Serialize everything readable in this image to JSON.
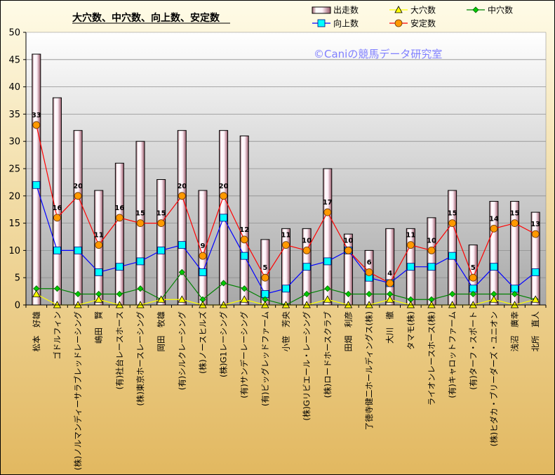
{
  "chart_data": {
    "type": "bar",
    "title": "大穴数、中穴数、向上数、安定数",
    "watermark": "©Caniの競馬データ研究室",
    "ylim": [
      0,
      50
    ],
    "yticks": [
      "0",
      "5",
      "10",
      "15",
      "20",
      "25",
      "30",
      "35",
      "40",
      "45",
      "50"
    ],
    "categories": [
      "松本　好雄",
      "ゴドルフィン",
      "(株)ノルマンディーサラブレッドレーシング",
      "嶋田　賢",
      "(有)社台レースホース",
      "(株)東京ホースレーシング",
      "岡田　牧雄",
      "(有)シルクレーシング",
      "(株)ノースヒルズ",
      "(株)G1レーシング",
      "(有)サンデーレーシング",
      "(有)ビッグレッドファーム",
      "小笹　芳央",
      "(株)Gリビエール・レーシング",
      "(株)ロードホースクラブ",
      "田畑　利彦",
      "了徳寺健二ホールディングス(株)",
      "大川　徹",
      "タマモ(株)",
      "ライオンレースホース(株)",
      "(有)キャロットファーム",
      "(有)ターフ・スポート",
      "(株)ヒダカ・ブリーダーズ・ユニオン",
      "浅沼　廣幸",
      "北所　直人"
    ],
    "series": [
      {
        "name": "出走数",
        "kind": "bar",
        "color": "#FFF0F8",
        "values": [
          46,
          38,
          32,
          21,
          26,
          30,
          23,
          32,
          21,
          32,
          31,
          12,
          14,
          14,
          25,
          13,
          10,
          14,
          14,
          16,
          21,
          11,
          19,
          19,
          17
        ]
      },
      {
        "name": "大穴数",
        "kind": "line",
        "color": "#FFFF00",
        "values": [
          2,
          0,
          0,
          1,
          0,
          0,
          1,
          1,
          0,
          0,
          1,
          0,
          0,
          0,
          1,
          0,
          0,
          1,
          0,
          0,
          0,
          0,
          1,
          0,
          1
        ]
      },
      {
        "name": "中穴数",
        "kind": "line",
        "color": "#008000",
        "values": [
          3,
          3,
          2,
          2,
          2,
          3,
          1,
          6,
          1,
          4,
          3,
          1,
          0,
          2,
          3,
          2,
          2,
          2,
          1,
          1,
          2,
          2,
          2,
          2,
          1
        ]
      },
      {
        "name": "向上数",
        "kind": "line",
        "color": "#0000FF",
        "values": [
          22,
          10,
          10,
          6,
          7,
          8,
          10,
          11,
          6,
          16,
          9,
          2,
          3,
          7,
          8,
          10,
          5,
          4,
          7,
          7,
          9,
          3,
          7,
          3,
          6
        ]
      },
      {
        "name": "安定数",
        "kind": "line",
        "color": "#FF0000",
        "values": [
          33,
          16,
          20,
          11,
          16,
          15,
          15,
          20,
          9,
          20,
          12,
          5,
          11,
          10,
          17,
          10,
          6,
          4,
          11,
          10,
          15,
          5,
          14,
          15,
          13
        ]
      }
    ],
    "data_labels_series": "安定数",
    "grid": true,
    "legend": "top-right"
  }
}
